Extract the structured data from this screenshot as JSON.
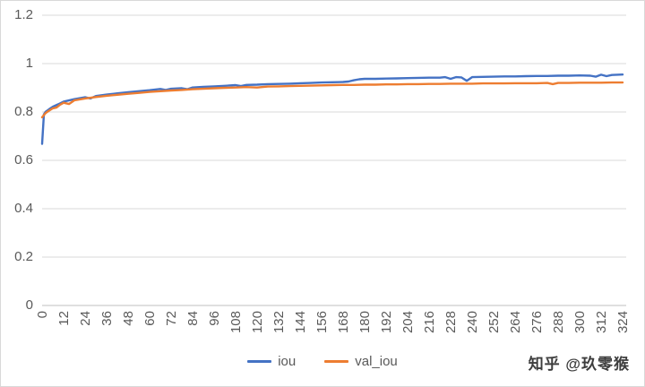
{
  "watermark": {
    "text": "知乎 @玖零猴"
  },
  "colors": {
    "series_iou": "#4472C4",
    "series_val_iou": "#ED7D31",
    "gridline": "#d9d9d9",
    "axis_line": "#bfbfbf",
    "axis_text": "#595959"
  },
  "chart_data": {
    "type": "line",
    "title": "",
    "xlabel": "",
    "ylabel": "",
    "xlim": [
      0,
      326
    ],
    "ylim": [
      0,
      1.2
    ],
    "x_ticks": [
      0,
      12,
      24,
      36,
      48,
      60,
      72,
      84,
      96,
      108,
      120,
      132,
      144,
      156,
      168,
      180,
      192,
      204,
      216,
      228,
      240,
      252,
      264,
      276,
      288,
      300,
      312,
      324
    ],
    "y_ticks": [
      0,
      0.2,
      0.4,
      0.6,
      0.8,
      1,
      1.2
    ],
    "grid": "horizontal",
    "legend_position": "bottom",
    "series": [
      {
        "name": "iou",
        "color": "#4472C4",
        "points": [
          [
            0,
            0.668
          ],
          [
            1,
            0.79
          ],
          [
            2,
            0.801
          ],
          [
            4,
            0.812
          ],
          [
            6,
            0.822
          ],
          [
            9,
            0.832
          ],
          [
            12,
            0.843
          ],
          [
            18,
            0.853
          ],
          [
            24,
            0.861
          ],
          [
            27,
            0.856
          ],
          [
            30,
            0.866
          ],
          [
            36,
            0.872
          ],
          [
            42,
            0.877
          ],
          [
            48,
            0.882
          ],
          [
            54,
            0.886
          ],
          [
            60,
            0.89
          ],
          [
            66,
            0.895
          ],
          [
            69,
            0.891
          ],
          [
            72,
            0.896
          ],
          [
            78,
            0.898
          ],
          [
            81,
            0.894
          ],
          [
            84,
            0.901
          ],
          [
            90,
            0.904
          ],
          [
            96,
            0.906
          ],
          [
            102,
            0.908
          ],
          [
            108,
            0.911
          ],
          [
            111,
            0.907
          ],
          [
            114,
            0.912
          ],
          [
            120,
            0.913
          ],
          [
            126,
            0.915
          ],
          [
            132,
            0.916
          ],
          [
            138,
            0.917
          ],
          [
            144,
            0.919
          ],
          [
            150,
            0.92
          ],
          [
            156,
            0.922
          ],
          [
            162,
            0.923
          ],
          [
            168,
            0.924
          ],
          [
            171,
            0.926
          ],
          [
            174,
            0.931
          ],
          [
            177,
            0.935
          ],
          [
            180,
            0.937
          ],
          [
            186,
            0.937
          ],
          [
            192,
            0.938
          ],
          [
            198,
            0.939
          ],
          [
            204,
            0.94
          ],
          [
            210,
            0.941
          ],
          [
            216,
            0.942
          ],
          [
            222,
            0.942
          ],
          [
            225,
            0.944
          ],
          [
            228,
            0.937
          ],
          [
            231,
            0.944
          ],
          [
            234,
            0.943
          ],
          [
            237,
            0.929
          ],
          [
            240,
            0.944
          ],
          [
            246,
            0.945
          ],
          [
            252,
            0.946
          ],
          [
            258,
            0.947
          ],
          [
            264,
            0.947
          ],
          [
            270,
            0.948
          ],
          [
            276,
            0.949
          ],
          [
            282,
            0.949
          ],
          [
            288,
            0.95
          ],
          [
            294,
            0.95
          ],
          [
            300,
            0.951
          ],
          [
            306,
            0.95
          ],
          [
            309,
            0.946
          ],
          [
            312,
            0.954
          ],
          [
            315,
            0.948
          ],
          [
            318,
            0.953
          ],
          [
            324,
            0.955
          ]
        ]
      },
      {
        "name": "val_iou",
        "color": "#ED7D31",
        "points": [
          [
            0,
            0.778
          ],
          [
            2,
            0.796
          ],
          [
            4,
            0.806
          ],
          [
            6,
            0.815
          ],
          [
            8,
            0.818
          ],
          [
            10,
            0.83
          ],
          [
            12,
            0.838
          ],
          [
            15,
            0.833
          ],
          [
            18,
            0.848
          ],
          [
            24,
            0.856
          ],
          [
            30,
            0.862
          ],
          [
            36,
            0.867
          ],
          [
            42,
            0.871
          ],
          [
            48,
            0.875
          ],
          [
            54,
            0.879
          ],
          [
            60,
            0.883
          ],
          [
            66,
            0.886
          ],
          [
            72,
            0.889
          ],
          [
            78,
            0.891
          ],
          [
            84,
            0.894
          ],
          [
            90,
            0.896
          ],
          [
            96,
            0.898
          ],
          [
            102,
            0.9
          ],
          [
            108,
            0.901
          ],
          [
            114,
            0.903
          ],
          [
            120,
            0.901
          ],
          [
            126,
            0.905
          ],
          [
            132,
            0.906
          ],
          [
            138,
            0.907
          ],
          [
            144,
            0.908
          ],
          [
            150,
            0.909
          ],
          [
            156,
            0.91
          ],
          [
            162,
            0.911
          ],
          [
            168,
            0.912
          ],
          [
            174,
            0.912
          ],
          [
            180,
            0.913
          ],
          [
            186,
            0.913
          ],
          [
            192,
            0.914
          ],
          [
            198,
            0.914
          ],
          [
            204,
            0.915
          ],
          [
            210,
            0.915
          ],
          [
            216,
            0.916
          ],
          [
            222,
            0.916
          ],
          [
            228,
            0.917
          ],
          [
            234,
            0.917
          ],
          [
            240,
            0.917
          ],
          [
            246,
            0.918
          ],
          [
            252,
            0.918
          ],
          [
            258,
            0.918
          ],
          [
            264,
            0.919
          ],
          [
            270,
            0.919
          ],
          [
            276,
            0.919
          ],
          [
            282,
            0.92
          ],
          [
            285,
            0.915
          ],
          [
            288,
            0.92
          ],
          [
            294,
            0.92
          ],
          [
            300,
            0.921
          ],
          [
            306,
            0.921
          ],
          [
            312,
            0.921
          ],
          [
            318,
            0.922
          ],
          [
            324,
            0.922
          ]
        ]
      }
    ]
  }
}
